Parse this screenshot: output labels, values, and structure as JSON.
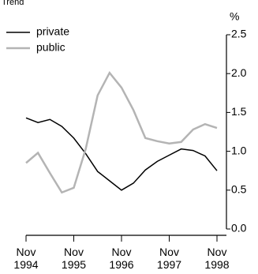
{
  "chart_data": {
    "type": "line",
    "title": "Trend",
    "y_label": "%",
    "categories": [
      "Nov 1994",
      null,
      null,
      null,
      "Nov 1995",
      null,
      null,
      null,
      "Nov 1996",
      null,
      null,
      null,
      "Nov 1997",
      null,
      null,
      null,
      "Nov 1998"
    ],
    "series": [
      {
        "name": "private",
        "color": "#000000",
        "values": [
          1.43,
          1.37,
          1.41,
          1.32,
          1.17,
          0.97,
          0.74,
          0.62,
          0.5,
          0.59,
          0.76,
          0.87,
          0.95,
          1.03,
          1.01,
          0.94,
          0.75
        ]
      },
      {
        "name": "public",
        "color": "#b4b4b4",
        "values": [
          0.85,
          0.98,
          0.72,
          0.47,
          0.53,
          1.03,
          1.72,
          2.01,
          1.82,
          1.53,
          1.17,
          1.13,
          1.1,
          1.12,
          1.28,
          1.35,
          1.3
        ]
      }
    ],
    "ylim": [
      0,
      2.5
    ],
    "yticks": [
      {
        "value": 0,
        "label": "0.0"
      },
      {
        "value": 0.5,
        "label": "0.5"
      },
      {
        "value": 1,
        "label": "1.0"
      },
      {
        "value": 1.5,
        "label": "1.5"
      },
      {
        "value": 2,
        "label": "2.0"
      },
      {
        "value": 2.5,
        "label": "2.5"
      }
    ],
    "legend": "top-left"
  }
}
